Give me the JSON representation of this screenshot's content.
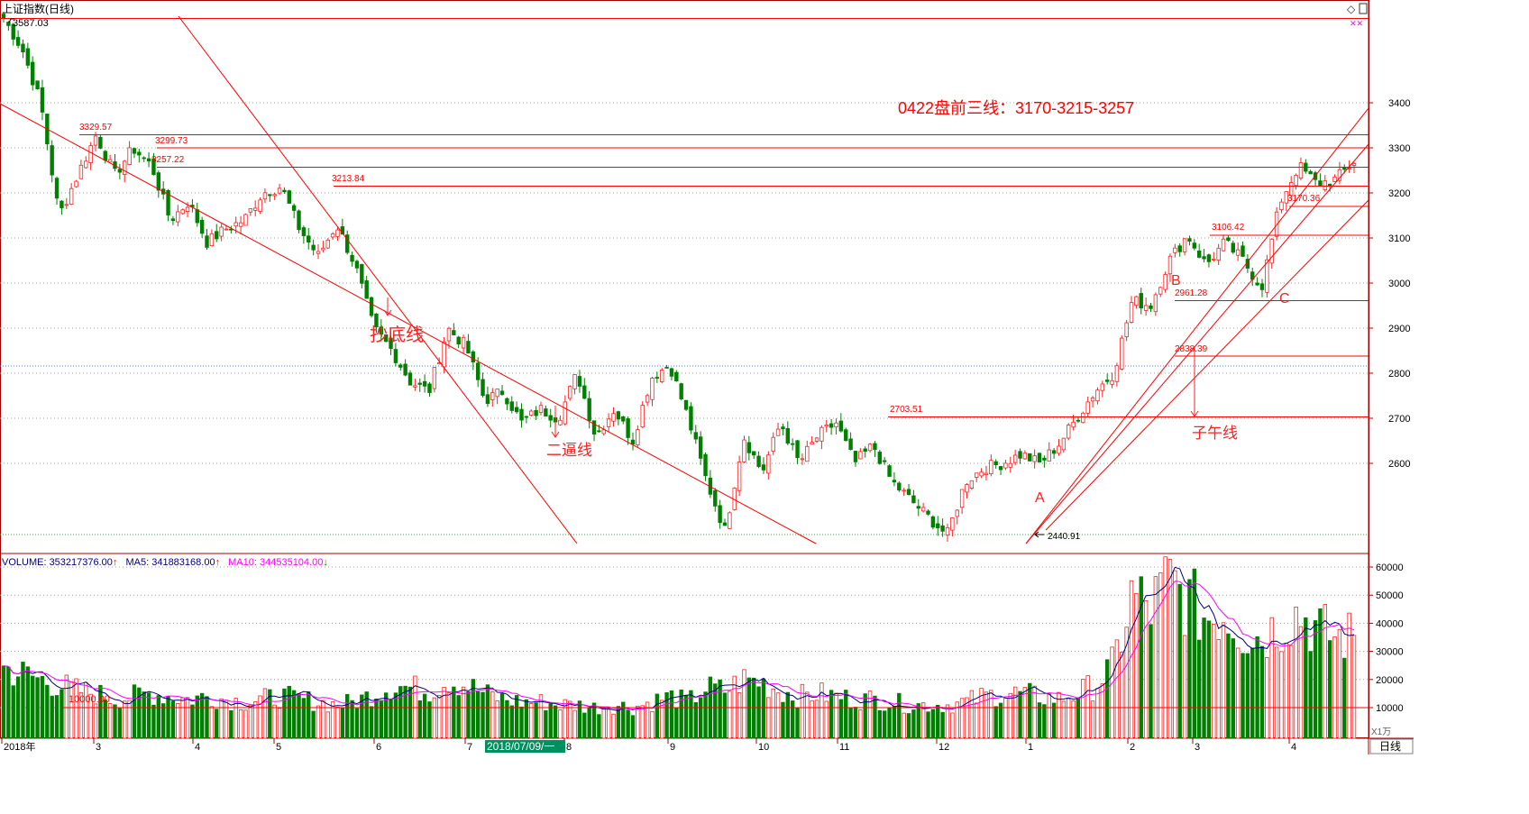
{
  "window": {
    "title": "上证指数(日线)",
    "top_price_label": "3587.03",
    "icons": [
      "diamond-icon",
      "window-toggle-icon"
    ]
  },
  "annotation_main": "0422盘前三线：3170-3215-3257",
  "colors": {
    "up": "#ff2020",
    "down": "#008000",
    "line": "#ff0000",
    "ma5": "#000080",
    "ma10": "#ff00ff",
    "grid": "#a0a0a0",
    "label_bg": "#009060"
  },
  "volume_header": {
    "volume_label": "VOLUME: 353217376.00",
    "ma5_label": "MA5: 341883168.00",
    "ma10_label": "MA10: 344535104.00",
    "cursor_value_label": "10000.00",
    "unit_label": "X1万"
  },
  "bottom_bar": {
    "cursor_date": "2018/07/09/一",
    "period_label": "日线"
  },
  "chart_data": {
    "type": "candlestick",
    "title": "上证指数(日线)",
    "x_axis": {
      "month_ticks": [
        "2018年",
        "3",
        "4",
        "5",
        "6",
        "7",
        "8",
        "9",
        "10",
        "11",
        "12",
        "1",
        "2",
        "3",
        "4"
      ]
    },
    "price_axis": {
      "ticks": [
        2600,
        2700,
        2800,
        2900,
        3000,
        3100,
        3200,
        3300,
        3400
      ],
      "range": [
        2400,
        3600
      ]
    },
    "volume_axis": {
      "ticks": [
        10000,
        20000,
        30000,
        40000,
        50000,
        60000
      ],
      "range": [
        0,
        62000
      ],
      "unit": "X1万"
    },
    "price_path": [
      3587,
      3520,
      3400,
      3150,
      3240,
      3329,
      3240,
      3299,
      3260,
      3140,
      3180,
      3090,
      3120,
      3140,
      3200,
      3214,
      3120,
      3060,
      3130,
      3040,
      2900,
      2850,
      2780,
      2760,
      2900,
      2860,
      2740,
      2760,
      2690,
      2720,
      2700,
      2800,
      2660,
      2720,
      2650,
      2790,
      2820,
      2700,
      2560,
      2450,
      2660,
      2580,
      2690,
      2600,
      2660,
      2690,
      2600,
      2640,
      2560,
      2520,
      2480,
      2441,
      2560,
      2590,
      2600,
      2620,
      2600,
      2640,
      2700,
      2760,
      2800,
      2961,
      2950,
      3050,
      3106,
      3040,
      3090,
      3050,
      2990,
      3180,
      3260,
      3220,
      3230,
      3270
    ],
    "volume_path": [
      24000,
      22000,
      20000,
      18000,
      16000,
      15000,
      13000,
      14000,
      15000,
      14000,
      13000,
      14000,
      13000,
      12000,
      13000,
      14000,
      13000,
      12000,
      11000,
      12000,
      15000,
      18000,
      17000,
      16000,
      20000,
      18000,
      15000,
      13000,
      12000,
      12000,
      11000,
      11000,
      10000,
      11000,
      10000,
      12000,
      14000,
      12000,
      17000,
      16000,
      20000,
      19000,
      16000,
      14000,
      15000,
      14000,
      13000,
      13000,
      12000,
      11000,
      11000,
      11000,
      12000,
      14000,
      15000,
      15000,
      14000,
      13000,
      15000,
      18000,
      25000,
      50000,
      45000,
      55000,
      48000,
      42000,
      44000,
      37000,
      35000,
      40000,
      44000,
      38000,
      35000,
      35000
    ],
    "price_labels": [
      {
        "text": "3329.57",
        "value": 3329.57
      },
      {
        "text": "3299.73",
        "value": 3299.73
      },
      {
        "text": "3257.22",
        "value": 3257.22
      },
      {
        "text": "3213.84",
        "value": 3213.84
      },
      {
        "text": "2703.51",
        "value": 2703.51
      },
      {
        "text": "2440.91",
        "value": 2440.91
      },
      {
        "text": "2961.28",
        "value": 2961.28
      },
      {
        "text": "2838.39",
        "value": 2838.39
      },
      {
        "text": "3106.42",
        "value": 3106.42
      },
      {
        "text": "3170.36",
        "value": 3170.36
      }
    ],
    "horizontal_lines": [
      3587,
      3329,
      3300,
      3257,
      3215,
      3170,
      3106,
      2961,
      2838,
      2703
    ],
    "text_annotations": [
      "抄底线",
      "二逼线",
      "子午线",
      "A",
      "B",
      "C"
    ]
  }
}
